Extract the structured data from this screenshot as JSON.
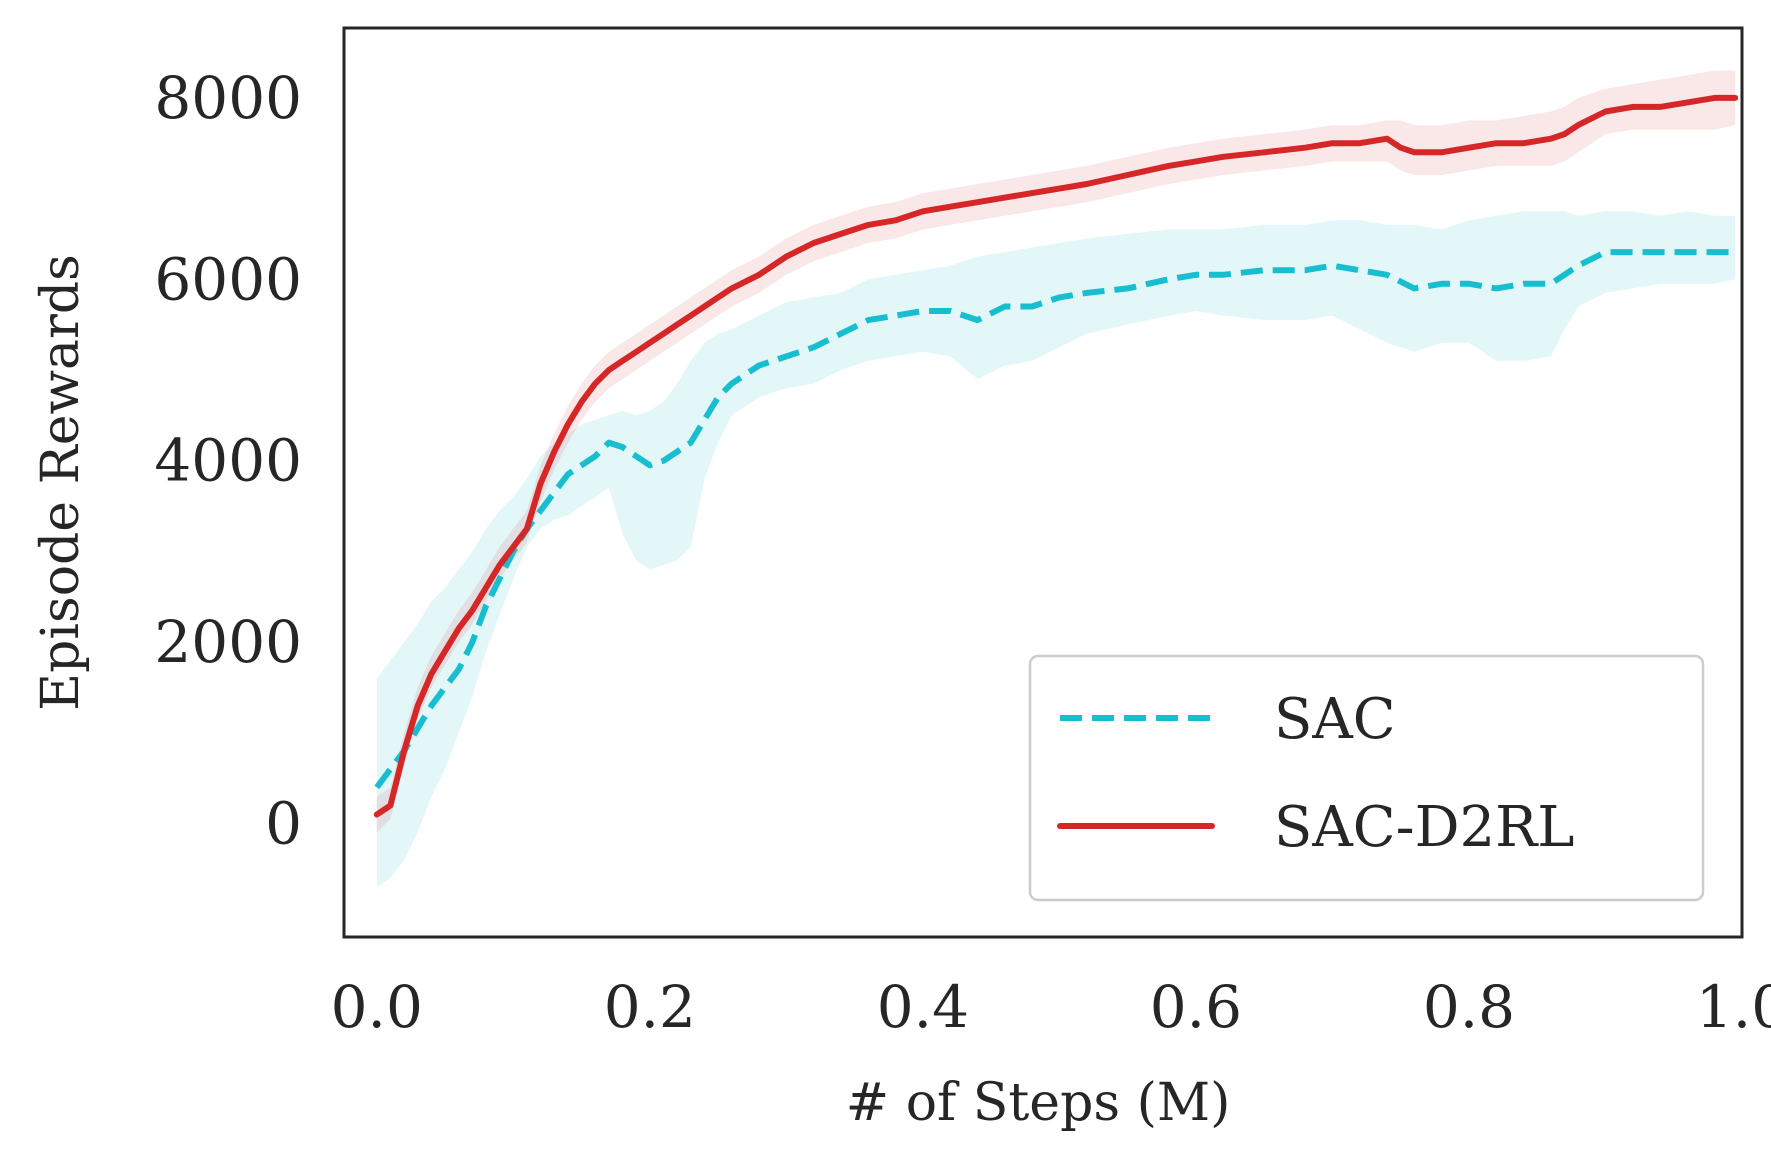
{
  "chart_data": {
    "type": "line",
    "title": "",
    "xlabel": "# of Steps (M)",
    "ylabel": "Episode Rewards",
    "xlim": [
      -0.024,
      1.0
    ],
    "ylim": [
      -1250,
      8770
    ],
    "xticks": [
      0.0,
      0.2,
      0.4,
      0.6,
      0.8,
      1.0
    ],
    "xtick_labels": [
      "0.0",
      "0.2",
      "0.4",
      "0.6",
      "0.8",
      "1.0"
    ],
    "yticks": [
      0,
      2000,
      4000,
      6000,
      8000
    ],
    "ytick_labels": [
      "0",
      "2000",
      "4000",
      "6000",
      "8000"
    ],
    "grid": false,
    "legend_position": "lower-right",
    "series": [
      {
        "name": "SAC",
        "color": "#17becf",
        "style": "dashed",
        "x": [
          0.0,
          0.01,
          0.02,
          0.03,
          0.04,
          0.05,
          0.06,
          0.07,
          0.08,
          0.09,
          0.1,
          0.11,
          0.12,
          0.13,
          0.14,
          0.15,
          0.16,
          0.17,
          0.18,
          0.19,
          0.2,
          0.21,
          0.22,
          0.23,
          0.24,
          0.25,
          0.26,
          0.28,
          0.3,
          0.32,
          0.34,
          0.36,
          0.38,
          0.4,
          0.42,
          0.44,
          0.46,
          0.48,
          0.5,
          0.52,
          0.55,
          0.58,
          0.6,
          0.62,
          0.65,
          0.68,
          0.7,
          0.72,
          0.74,
          0.76,
          0.78,
          0.8,
          0.82,
          0.84,
          0.86,
          0.87,
          0.88,
          0.9,
          0.92,
          0.94,
          0.96,
          0.98,
          0.995
        ],
        "y": [
          400,
          600,
          800,
          1050,
          1300,
          1500,
          1700,
          2000,
          2400,
          2700,
          3000,
          3250,
          3450,
          3650,
          3850,
          3950,
          4050,
          4200,
          4150,
          4050,
          3950,
          4000,
          4100,
          4200,
          4450,
          4700,
          4850,
          5050,
          5150,
          5250,
          5400,
          5550,
          5600,
          5650,
          5650,
          5550,
          5700,
          5700,
          5800,
          5850,
          5900,
          6000,
          6050,
          6050,
          6100,
          6100,
          6150,
          6100,
          6050,
          5900,
          5950,
          5950,
          5900,
          5950,
          5950,
          6050,
          6150,
          6300,
          6300,
          6300,
          6300,
          6300,
          6300
        ],
        "lower": [
          -700,
          -600,
          -400,
          -100,
          300,
          600,
          1000,
          1400,
          1900,
          2300,
          2700,
          3050,
          3250,
          3350,
          3400,
          3500,
          3600,
          3700,
          3200,
          2900,
          2800,
          2850,
          2900,
          3050,
          3800,
          4200,
          4500,
          4700,
          4800,
          4850,
          5000,
          5100,
          5150,
          5200,
          5150,
          4900,
          5050,
          5100,
          5250,
          5400,
          5500,
          5600,
          5650,
          5600,
          5550,
          5550,
          5600,
          5450,
          5300,
          5200,
          5300,
          5300,
          5100,
          5100,
          5150,
          5450,
          5700,
          5850,
          5900,
          5950,
          5950,
          5950,
          6000
        ],
        "upper": [
          1600,
          1800,
          2000,
          2200,
          2450,
          2600,
          2800,
          3000,
          3250,
          3450,
          3600,
          3800,
          4050,
          4200,
          4300,
          4400,
          4450,
          4500,
          4550,
          4500,
          4550,
          4650,
          4850,
          5100,
          5300,
          5400,
          5450,
          5600,
          5750,
          5800,
          5850,
          6000,
          6050,
          6100,
          6150,
          6250,
          6300,
          6350,
          6400,
          6450,
          6500,
          6550,
          6550,
          6550,
          6600,
          6600,
          6650,
          6650,
          6600,
          6600,
          6550,
          6650,
          6700,
          6750,
          6750,
          6750,
          6700,
          6750,
          6750,
          6700,
          6750,
          6700,
          6700
        ]
      },
      {
        "name": "SAC-D2RL",
        "color": "#d62728",
        "style": "solid",
        "x": [
          0.0,
          0.01,
          0.02,
          0.03,
          0.04,
          0.05,
          0.06,
          0.07,
          0.08,
          0.09,
          0.1,
          0.11,
          0.12,
          0.13,
          0.14,
          0.15,
          0.16,
          0.17,
          0.18,
          0.19,
          0.2,
          0.21,
          0.22,
          0.23,
          0.24,
          0.25,
          0.26,
          0.28,
          0.3,
          0.32,
          0.34,
          0.36,
          0.38,
          0.4,
          0.42,
          0.44,
          0.46,
          0.48,
          0.5,
          0.52,
          0.55,
          0.58,
          0.6,
          0.62,
          0.65,
          0.68,
          0.7,
          0.72,
          0.74,
          0.75,
          0.76,
          0.78,
          0.8,
          0.82,
          0.84,
          0.86,
          0.87,
          0.88,
          0.9,
          0.92,
          0.94,
          0.96,
          0.98,
          0.995
        ],
        "y": [
          100,
          200,
          800,
          1300,
          1650,
          1900,
          2150,
          2350,
          2600,
          2850,
          3050,
          3250,
          3750,
          4100,
          4400,
          4650,
          4850,
          5000,
          5100,
          5200,
          5300,
          5400,
          5500,
          5600,
          5700,
          5800,
          5900,
          6050,
          6250,
          6400,
          6500,
          6600,
          6650,
          6750,
          6800,
          6850,
          6900,
          6950,
          7000,
          7050,
          7150,
          7250,
          7300,
          7350,
          7400,
          7450,
          7500,
          7500,
          7550,
          7450,
          7400,
          7400,
          7450,
          7500,
          7500,
          7550,
          7600,
          7700,
          7850,
          7900,
          7900,
          7950,
          8000,
          8000
        ],
        "lower": [
          -100,
          50,
          650,
          1150,
          1500,
          1750,
          2000,
          2200,
          2450,
          2700,
          2900,
          3100,
          3550,
          3900,
          4200,
          4450,
          4650,
          4800,
          4900,
          5000,
          5100,
          5200,
          5300,
          5400,
          5500,
          5600,
          5700,
          5850,
          6050,
          6200,
          6300,
          6400,
          6450,
          6550,
          6600,
          6650,
          6700,
          6750,
          6800,
          6850,
          6950,
          7050,
          7100,
          7150,
          7200,
          7250,
          7300,
          7300,
          7300,
          7200,
          7150,
          7150,
          7200,
          7250,
          7250,
          7250,
          7300,
          7400,
          7600,
          7650,
          7650,
          7650,
          7650,
          7700
        ],
        "upper": [
          300,
          400,
          1000,
          1500,
          1850,
          2100,
          2350,
          2550,
          2800,
          3050,
          3250,
          3450,
          3950,
          4300,
          4600,
          4850,
          5050,
          5200,
          5300,
          5400,
          5500,
          5600,
          5700,
          5800,
          5900,
          6000,
          6100,
          6250,
          6450,
          6600,
          6700,
          6800,
          6850,
          6950,
          7000,
          7050,
          7100,
          7150,
          7200,
          7250,
          7350,
          7450,
          7500,
          7550,
          7600,
          7650,
          7700,
          7700,
          7750,
          7750,
          7700,
          7700,
          7750,
          7750,
          7800,
          7850,
          7900,
          8000,
          8100,
          8150,
          8200,
          8250,
          8300,
          8300
        ]
      }
    ]
  }
}
